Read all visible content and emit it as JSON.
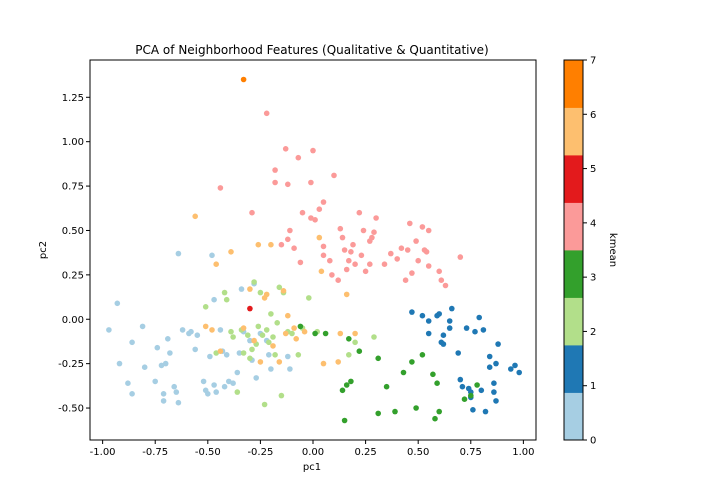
{
  "chart_data": {
    "type": "scatter",
    "title": "PCA of Neighborhood Features (Qualitative & Quantitative)",
    "xlabel": "pc1",
    "ylabel": "pc2",
    "xlim": [
      -1.06,
      1.06
    ],
    "ylim": [
      -0.68,
      1.46
    ],
    "xticks": [
      "-1.00",
      "-0.75",
      "-0.50",
      "-0.25",
      "0.00",
      "0.25",
      "0.50",
      "0.75",
      "1.00"
    ],
    "yticks": [
      "-0.50",
      "-0.25",
      "0.00",
      "0.25",
      "0.50",
      "0.75",
      "1.00",
      "1.25"
    ],
    "grid": false,
    "colorbar": {
      "label": "kmean",
      "ticks": [
        "0",
        "1",
        "2",
        "3",
        "4",
        "5",
        "6",
        "7"
      ],
      "colors": [
        "#a6cee3",
        "#1f78b4",
        "#b2df8a",
        "#33a02c",
        "#fb9a99",
        "#e31a1c",
        "#fdbf6f",
        "#ff7f00"
      ]
    },
    "series": [
      {
        "cluster": 0,
        "color": "#a6cee3",
        "points": [
          [
            -0.97,
            -0.06
          ],
          [
            -0.93,
            0.09
          ],
          [
            -0.92,
            -0.25
          ],
          [
            -0.88,
            -0.36
          ],
          [
            -0.86,
            -0.13
          ],
          [
            -0.86,
            -0.42
          ],
          [
            -0.81,
            -0.04
          ],
          [
            -0.8,
            -0.27
          ],
          [
            -0.75,
            -0.35
          ],
          [
            -0.74,
            -0.16
          ],
          [
            -0.72,
            -0.26
          ],
          [
            -0.71,
            -0.42
          ],
          [
            -0.71,
            -0.46
          ],
          [
            -0.7,
            -0.25
          ],
          [
            -0.69,
            -0.11
          ],
          [
            -0.68,
            -0.19
          ],
          [
            -0.66,
            -0.38
          ],
          [
            -0.65,
            -0.41
          ],
          [
            -0.64,
            -0.47
          ],
          [
            -0.64,
            0.37
          ],
          [
            -0.62,
            -0.06
          ],
          [
            -0.59,
            -0.08
          ],
          [
            -0.58,
            -0.07
          ],
          [
            -0.56,
            -0.17
          ],
          [
            -0.55,
            -0.09
          ],
          [
            -0.52,
            -0.35
          ],
          [
            -0.51,
            -0.4
          ],
          [
            -0.5,
            -0.42
          ],
          [
            -0.49,
            -0.21
          ],
          [
            -0.48,
            0.36
          ],
          [
            -0.47,
            0.11
          ],
          [
            -0.47,
            -0.37
          ],
          [
            -0.46,
            -0.41
          ],
          [
            -0.44,
            -0.06
          ],
          [
            -0.42,
            -0.38
          ],
          [
            -0.41,
            -0.2
          ],
          [
            -0.4,
            -0.35
          ],
          [
            -0.38,
            -0.36
          ],
          [
            -0.35,
            -0.19
          ],
          [
            -0.34,
            0.17
          ],
          [
            -0.33,
            -0.07
          ],
          [
            -0.3,
            -0.12
          ],
          [
            -0.29,
            -0.23
          ],
          [
            -0.28,
            0.2
          ],
          [
            -0.27,
            -0.33
          ],
          [
            -0.25,
            -0.08
          ],
          [
            -0.22,
            -0.12
          ],
          [
            -0.21,
            -0.2
          ],
          [
            -0.2,
            -0.28
          ],
          [
            -0.12,
            -0.21
          ],
          [
            -0.11,
            -0.28
          ],
          [
            -0.43,
            -0.18
          ],
          [
            -0.36,
            -0.3
          ]
        ]
      },
      {
        "cluster": 1,
        "color": "#1f78b4",
        "points": [
          [
            0.47,
            0.04
          ],
          [
            0.52,
            0.02
          ],
          [
            0.55,
            -0.01
          ],
          [
            0.55,
            -0.08
          ],
          [
            0.59,
            0.02
          ],
          [
            0.6,
            0.03
          ],
          [
            0.61,
            -0.13
          ],
          [
            0.62,
            -0.14
          ],
          [
            0.62,
            -0.09
          ],
          [
            0.65,
            -0.01
          ],
          [
            0.65,
            -0.05
          ],
          [
            0.66,
            0.06
          ],
          [
            0.69,
            -0.19
          ],
          [
            0.7,
            -0.34
          ],
          [
            0.71,
            -0.38
          ],
          [
            0.73,
            -0.05
          ],
          [
            0.74,
            -0.39
          ],
          [
            0.75,
            -0.41
          ],
          [
            0.75,
            -0.44
          ],
          [
            0.76,
            -0.51
          ],
          [
            0.77,
            -0.07
          ],
          [
            0.79,
            0.01
          ],
          [
            0.8,
            -0.4
          ],
          [
            0.81,
            -0.06
          ],
          [
            0.82,
            -0.52
          ],
          [
            0.84,
            -0.21
          ],
          [
            0.84,
            -0.27
          ],
          [
            0.86,
            -0.36
          ],
          [
            0.86,
            -0.41
          ],
          [
            0.87,
            -0.25
          ],
          [
            0.87,
            -0.46
          ],
          [
            0.94,
            -0.28
          ],
          [
            0.96,
            -0.26
          ],
          [
            0.98,
            -0.3
          ],
          [
            0.88,
            -0.14
          ]
        ]
      },
      {
        "cluster": 2,
        "color": "#b2df8a",
        "points": [
          [
            -0.51,
            0.07
          ],
          [
            -0.46,
            -0.19
          ],
          [
            -0.42,
            0.15
          ],
          [
            -0.41,
            0.11
          ],
          [
            -0.39,
            -0.07
          ],
          [
            -0.38,
            -0.1
          ],
          [
            -0.36,
            -0.41
          ],
          [
            -0.34,
            -0.06
          ],
          [
            -0.33,
            -0.19
          ],
          [
            -0.31,
            -0.09
          ],
          [
            -0.3,
            -0.22
          ],
          [
            -0.29,
            -0.17
          ],
          [
            -0.28,
            0.21
          ],
          [
            -0.27,
            -0.14
          ],
          [
            -0.26,
            -0.04
          ],
          [
            -0.25,
            0.15
          ],
          [
            -0.24,
            -0.09
          ],
          [
            -0.23,
            -0.48
          ],
          [
            -0.22,
            -0.06
          ],
          [
            -0.21,
            -0.13
          ],
          [
            -0.2,
            0.03
          ],
          [
            -0.19,
            -0.1
          ],
          [
            -0.18,
            -0.2
          ],
          [
            -0.16,
            0.18
          ],
          [
            -0.15,
            -0.43
          ],
          [
            -0.14,
            0.15
          ],
          [
            -0.12,
            -0.07
          ],
          [
            -0.1,
            -0.08
          ],
          [
            -0.07,
            -0.2
          ],
          [
            -0.05,
            -0.05
          ],
          [
            -0.02,
            0.12
          ],
          [
            0.02,
            -0.07
          ],
          [
            0.17,
            -0.2
          ],
          [
            0.2,
            -0.13
          ],
          [
            0.29,
            -0.1
          ],
          [
            -0.17,
            -0.02
          ]
        ]
      },
      {
        "cluster": 3,
        "color": "#33a02c",
        "points": [
          [
            -0.06,
            -0.04
          ],
          [
            0.01,
            -0.08
          ],
          [
            0.06,
            -0.08
          ],
          [
            0.14,
            -0.4
          ],
          [
            0.15,
            -0.57
          ],
          [
            0.16,
            -0.37
          ],
          [
            0.18,
            -0.35
          ],
          [
            0.22,
            -0.18
          ],
          [
            0.31,
            -0.22
          ],
          [
            0.31,
            -0.53
          ],
          [
            0.35,
            -0.38
          ],
          [
            0.39,
            -0.52
          ],
          [
            0.43,
            -0.3
          ],
          [
            0.47,
            -0.24
          ],
          [
            0.49,
            -0.5
          ],
          [
            0.52,
            -0.2
          ],
          [
            0.57,
            -0.31
          ],
          [
            0.58,
            -0.56
          ],
          [
            0.59,
            -0.36
          ],
          [
            0.6,
            -0.52
          ],
          [
            0.72,
            -0.45
          ],
          [
            0.75,
            -0.43
          ],
          [
            0.78,
            -0.37
          ],
          [
            0.17,
            -0.11
          ]
        ]
      },
      {
        "cluster": 4,
        "color": "#fb9a99",
        "points": [
          [
            -0.44,
            0.74
          ],
          [
            -0.29,
            0.6
          ],
          [
            -0.22,
            1.16
          ],
          [
            -0.18,
            0.84
          ],
          [
            -0.18,
            0.77
          ],
          [
            -0.15,
            0.42
          ],
          [
            -0.13,
            0.96
          ],
          [
            -0.12,
            0.76
          ],
          [
            -0.11,
            0.5
          ],
          [
            -0.12,
            0.45
          ],
          [
            -0.09,
            0.4
          ],
          [
            -0.07,
            0.91
          ],
          [
            -0.06,
            0.32
          ],
          [
            -0.05,
            0.6
          ],
          [
            -0.01,
            0.57
          ],
          [
            -0.01,
            0.77
          ],
          [
            0.0,
            0.95
          ],
          [
            0.01,
            0.56
          ],
          [
            0.03,
            0.62
          ],
          [
            0.05,
            0.66
          ],
          [
            0.05,
            0.41
          ],
          [
            0.05,
            0.36
          ],
          [
            0.08,
            0.33
          ],
          [
            0.09,
            0.25
          ],
          [
            0.1,
            0.81
          ],
          [
            0.12,
            0.22
          ],
          [
            0.13,
            0.51
          ],
          [
            0.14,
            0.46
          ],
          [
            0.15,
            0.39
          ],
          [
            0.16,
            0.28
          ],
          [
            0.17,
            0.33
          ],
          [
            0.18,
            0.38
          ],
          [
            0.19,
            0.42
          ],
          [
            0.2,
            0.31
          ],
          [
            0.22,
            0.6
          ],
          [
            0.23,
            0.36
          ],
          [
            0.24,
            0.5
          ],
          [
            0.25,
            0.27
          ],
          [
            0.27,
            0.44
          ],
          [
            0.27,
            0.31
          ],
          [
            0.28,
            0.46
          ],
          [
            0.29,
            0.49
          ],
          [
            0.3,
            0.57
          ],
          [
            0.34,
            0.31
          ],
          [
            0.37,
            0.37
          ],
          [
            0.4,
            0.34
          ],
          [
            0.42,
            0.4
          ],
          [
            0.44,
            0.22
          ],
          [
            0.45,
            0.39
          ],
          [
            0.46,
            0.54
          ],
          [
            0.47,
            0.26
          ],
          [
            0.49,
            0.44
          ],
          [
            0.5,
            0.33
          ],
          [
            0.52,
            0.52
          ],
          [
            0.53,
            0.39
          ],
          [
            0.54,
            0.38
          ],
          [
            0.55,
            0.5
          ],
          [
            0.55,
            0.3
          ],
          [
            0.6,
            0.27
          ],
          [
            0.61,
            0.22
          ],
          [
            0.63,
            0.19
          ],
          [
            0.7,
            0.35
          ]
        ]
      },
      {
        "cluster": 5,
        "color": "#e31a1c",
        "points": [
          [
            -0.3,
            0.06
          ]
        ]
      },
      {
        "cluster": 6,
        "color": "#fdbf6f",
        "points": [
          [
            -0.56,
            0.58
          ],
          [
            -0.51,
            -0.04
          ],
          [
            -0.48,
            -0.06
          ],
          [
            -0.46,
            0.31
          ],
          [
            -0.44,
            -0.18
          ],
          [
            -0.39,
            0.38
          ],
          [
            -0.33,
            -0.05
          ],
          [
            -0.3,
            0.17
          ],
          [
            -0.28,
            -0.12
          ],
          [
            -0.26,
            0.42
          ],
          [
            -0.25,
            -0.24
          ],
          [
            -0.23,
            0.12
          ],
          [
            -0.22,
            0.14
          ],
          [
            -0.2,
            0.42
          ],
          [
            -0.19,
            -0.15
          ],
          [
            -0.16,
            -0.24
          ],
          [
            -0.14,
            0.16
          ],
          [
            -0.13,
            -0.08
          ],
          [
            -0.12,
            0.02
          ],
          [
            -0.08,
            -0.11
          ],
          [
            -0.04,
            -0.07
          ],
          [
            0.03,
            0.46
          ],
          [
            0.04,
            0.27
          ],
          [
            0.05,
            -0.25
          ],
          [
            0.12,
            -0.24
          ],
          [
            0.13,
            -0.08
          ],
          [
            0.16,
            0.14
          ],
          [
            0.2,
            -0.08
          ],
          [
            -0.09,
            -0.05
          ]
        ]
      },
      {
        "cluster": 7,
        "color": "#ff7f00",
        "points": [
          [
            -0.33,
            1.35
          ]
        ]
      }
    ]
  }
}
